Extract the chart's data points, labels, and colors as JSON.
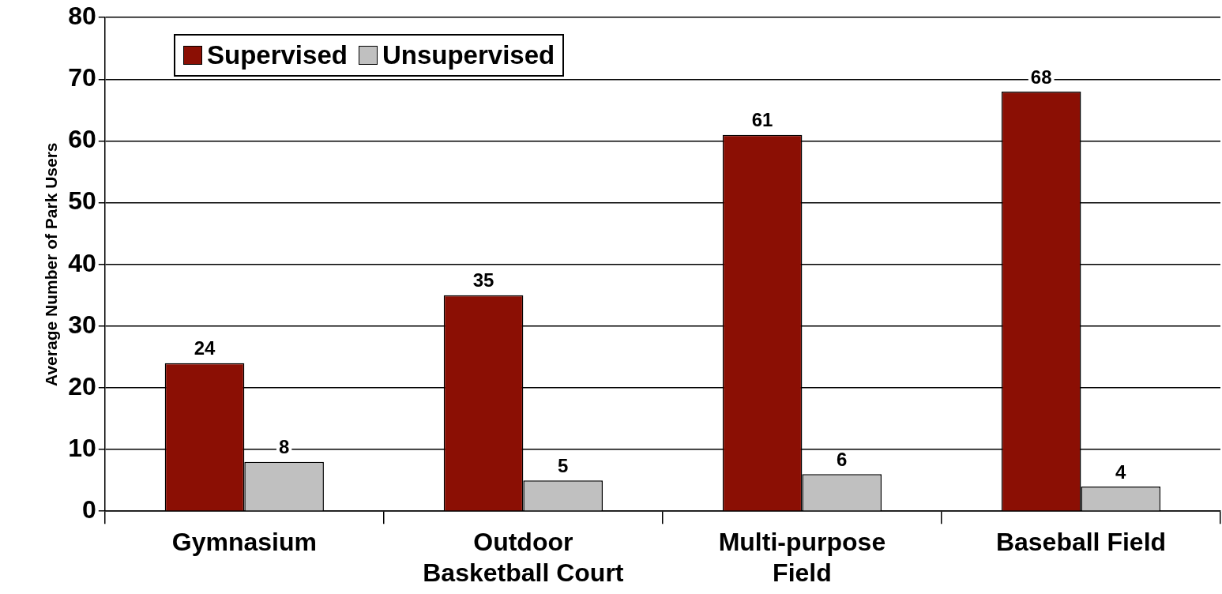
{
  "chart_data": {
    "type": "bar",
    "ylabel": "Average Number of Park Users",
    "categories": [
      "Gymnasium",
      "Outdoor Basketball Court",
      "Multi-purpose Field",
      "Baseball Field"
    ],
    "series": [
      {
        "name": "Supervised",
        "color": "#8b0f04",
        "values": [
          24,
          35,
          61,
          68
        ]
      },
      {
        "name": "Unsupervised",
        "color": "#c0c0c0",
        "values": [
          8,
          5,
          6,
          4
        ]
      }
    ],
    "ylim": [
      0,
      80
    ],
    "yticks": [
      0,
      10,
      20,
      30,
      40,
      50,
      60,
      70,
      80
    ],
    "grid": "y",
    "legend": "top left",
    "data_labels": true
  }
}
